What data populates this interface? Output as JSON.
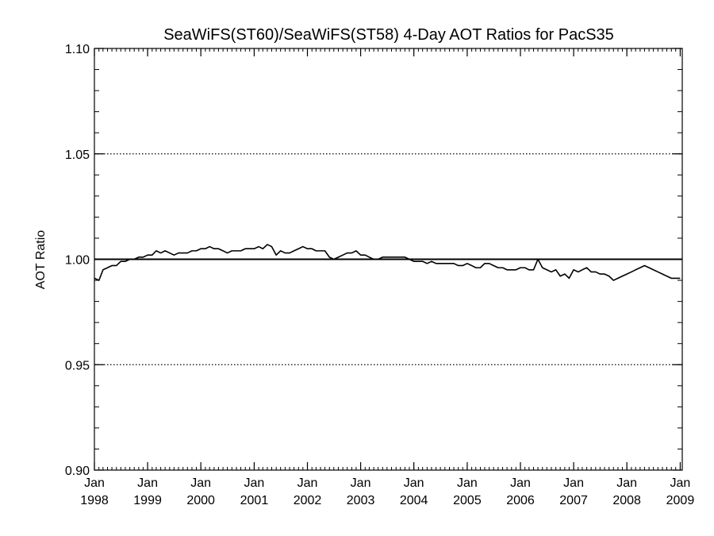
{
  "chart_data": {
    "type": "line",
    "title": "SeaWiFS(ST60)/SeaWiFS(ST58) 4-Day AOT Ratios for PacS35",
    "xlabel": "",
    "ylabel": "AOT Ratio",
    "xlim": [
      "1998-01-01",
      "2009-01-15"
    ],
    "ylim": [
      0.9,
      1.1
    ],
    "x_ticks": [
      {
        "x": "1998-01-01",
        "label": [
          "Jan",
          "1998"
        ]
      },
      {
        "x": "1999-01-01",
        "label": [
          "Jan",
          "1999"
        ]
      },
      {
        "x": "2000-01-01",
        "label": [
          "Jan",
          "2000"
        ]
      },
      {
        "x": "2001-01-01",
        "label": [
          "Jan",
          "2001"
        ]
      },
      {
        "x": "2002-01-01",
        "label": [
          "Jan",
          "2002"
        ]
      },
      {
        "x": "2003-01-01",
        "label": [
          "Jan",
          "2003"
        ]
      },
      {
        "x": "2004-01-01",
        "label": [
          "Jan",
          "2004"
        ]
      },
      {
        "x": "2005-01-01",
        "label": [
          "Jan",
          "2005"
        ]
      },
      {
        "x": "2006-01-01",
        "label": [
          "Jan",
          "2006"
        ]
      },
      {
        "x": "2007-01-01",
        "label": [
          "Jan",
          "2007"
        ]
      },
      {
        "x": "2008-01-01",
        "label": [
          "Jan",
          "2008"
        ]
      },
      {
        "x": "2009-01-01",
        "label": [
          "Jan",
          "2009"
        ]
      }
    ],
    "y_ticks": [
      "0.90",
      "0.95",
      "1.00",
      "1.05",
      "1.10"
    ],
    "reference_lines": [
      {
        "y": 1.0,
        "style": "solid"
      },
      {
        "y": 0.95,
        "style": "dotted"
      },
      {
        "y": 1.05,
        "style": "dotted"
      }
    ],
    "grid": false,
    "series": [
      {
        "x": [
          "1998-01-01",
          "1998-02-01",
          "1998-03-01",
          "1998-04-01",
          "1998-05-01",
          "1998-06-01",
          "1998-07-01",
          "1998-08-01",
          "1998-09-01",
          "1998-10-01",
          "1998-11-01",
          "1998-12-01",
          "1999-01-01",
          "1999-02-01",
          "1999-03-01",
          "1999-04-01",
          "1999-05-01",
          "1999-06-01",
          "1999-07-01",
          "1999-08-01",
          "1999-09-01",
          "1999-10-01",
          "1999-11-01",
          "1999-12-01",
          "2000-01-01",
          "2000-02-01",
          "2000-03-01",
          "2000-04-01",
          "2000-05-01",
          "2000-06-01",
          "2000-07-01",
          "2000-08-01",
          "2000-09-01",
          "2000-10-01",
          "2000-11-01",
          "2000-12-01",
          "2001-01-01",
          "2001-02-01",
          "2001-03-01",
          "2001-04-01",
          "2001-05-01",
          "2001-06-01",
          "2001-07-01",
          "2001-08-01",
          "2001-09-01",
          "2001-10-01",
          "2001-11-01",
          "2001-12-01",
          "2002-01-01",
          "2002-02-01",
          "2002-03-01",
          "2002-04-01",
          "2002-05-01",
          "2002-06-01",
          "2002-07-01",
          "2002-08-01",
          "2002-09-01",
          "2002-10-01",
          "2002-11-01",
          "2002-12-01",
          "2003-01-01",
          "2003-02-01",
          "2003-03-01",
          "2003-04-01",
          "2003-05-01",
          "2003-06-01",
          "2003-07-01",
          "2003-08-01",
          "2003-09-01",
          "2003-10-01",
          "2003-11-01",
          "2003-12-01",
          "2004-01-01",
          "2004-02-01",
          "2004-03-01",
          "2004-04-01",
          "2004-05-01",
          "2004-06-01",
          "2004-07-01",
          "2004-08-01",
          "2004-09-01",
          "2004-10-01",
          "2004-11-01",
          "2004-12-01",
          "2005-01-01",
          "2005-02-01",
          "2005-03-01",
          "2005-04-01",
          "2005-05-01",
          "2005-06-01",
          "2005-07-01",
          "2005-08-01",
          "2005-09-01",
          "2005-10-01",
          "2005-11-01",
          "2005-12-01",
          "2006-01-01",
          "2006-02-01",
          "2006-03-01",
          "2006-04-01",
          "2006-05-01",
          "2006-06-01",
          "2006-07-01",
          "2006-08-01",
          "2006-09-01",
          "2006-10-01",
          "2006-11-01",
          "2006-12-01",
          "2007-01-01",
          "2007-02-01",
          "2007-03-01",
          "2007-04-01",
          "2007-05-01",
          "2007-06-01",
          "2007-07-01",
          "2007-08-01",
          "2007-09-01",
          "2007-10-01",
          "2007-11-01",
          "2007-12-01",
          "2008-01-01",
          "2008-02-01",
          "2008-03-01",
          "2008-04-01",
          "2008-05-01",
          "2008-06-01",
          "2008-07-01",
          "2008-08-01",
          "2008-09-01",
          "2008-10-01",
          "2008-11-01",
          "2008-12-01",
          "2009-01-01"
        ],
        "y": [
          0.991,
          0.99,
          0.995,
          0.996,
          0.997,
          0.997,
          0.999,
          0.999,
          1.0,
          1.0,
          1.001,
          1.001,
          1.002,
          1.002,
          1.004,
          1.003,
          1.004,
          1.003,
          1.002,
          1.003,
          1.003,
          1.003,
          1.004,
          1.004,
          1.005,
          1.005,
          1.006,
          1.005,
          1.005,
          1.004,
          1.003,
          1.004,
          1.004,
          1.004,
          1.005,
          1.005,
          1.005,
          1.006,
          1.005,
          1.007,
          1.006,
          1.002,
          1.004,
          1.003,
          1.003,
          1.004,
          1.005,
          1.006,
          1.005,
          1.005,
          1.004,
          1.004,
          1.004,
          1.001,
          1.0,
          1.001,
          1.002,
          1.003,
          1.003,
          1.004,
          1.002,
          1.002,
          1.001,
          1.0,
          1.0,
          1.001,
          1.001,
          1.001,
          1.001,
          1.001,
          1.001,
          1.0,
          0.999,
          0.999,
          0.999,
          0.998,
          0.999,
          0.998,
          0.998,
          0.998,
          0.998,
          0.998,
          0.997,
          0.997,
          0.998,
          0.997,
          0.996,
          0.996,
          0.998,
          0.998,
          0.997,
          0.996,
          0.996,
          0.995,
          0.995,
          0.995,
          0.996,
          0.996,
          0.995,
          0.995,
          1.0,
          0.996,
          0.995,
          0.994,
          0.995,
          0.992,
          0.993,
          0.991,
          0.995,
          0.994,
          0.995,
          0.996,
          0.994,
          0.994,
          0.993,
          0.993,
          0.992,
          0.99,
          0.991,
          0.992,
          0.993,
          0.994,
          0.995,
          0.996,
          0.997,
          0.996,
          0.995,
          0.994,
          0.993,
          0.992,
          0.991,
          0.991,
          0.991
        ]
      }
    ]
  }
}
